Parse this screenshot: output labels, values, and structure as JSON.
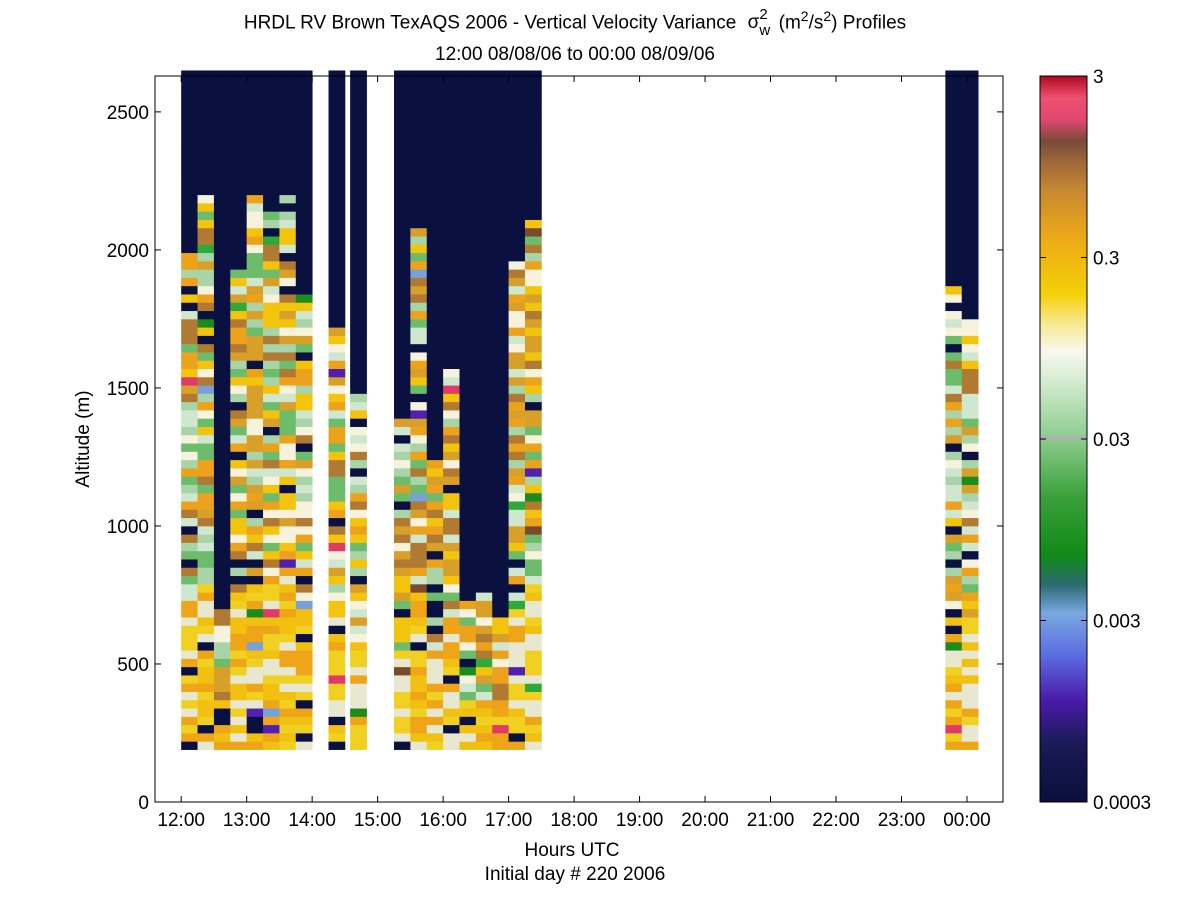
{
  "chart_data": {
    "type": "heatmap",
    "title": {
      "prefix": "HRDL RV Brown TexAQS 2006 - Vertical Velocity Variance",
      "symbol": "σ",
      "symbol_sub": "w",
      "symbol_sup": "2",
      "units_open": "(m",
      "units_sup": "2",
      "units_mid": "/s",
      "units_sup2": "2",
      "units_close": ") Profiles"
    },
    "subtitle": "12:00 08/08/06 to 00:00 08/09/06",
    "xlabel": "Hours UTC",
    "xlabel2": "Initial day # 220  2006",
    "ylabel": "Altitude (m)",
    "x_range_hours": [
      11.6,
      24.55
    ],
    "y_range_m": [
      0,
      2630
    ],
    "x_ticks": [
      {
        "h": 12,
        "label": "12:00"
      },
      {
        "h": 13,
        "label": "13:00"
      },
      {
        "h": 14,
        "label": "14:00"
      },
      {
        "h": 15,
        "label": "15:00"
      },
      {
        "h": 16,
        "label": "16:00"
      },
      {
        "h": 17,
        "label": "17:00"
      },
      {
        "h": 18,
        "label": "18:00"
      },
      {
        "h": 19,
        "label": "19:00"
      },
      {
        "h": 20,
        "label": "20:00"
      },
      {
        "h": 21,
        "label": "21:00"
      },
      {
        "h": 22,
        "label": "22:00"
      },
      {
        "h": 23,
        "label": "23:00"
      },
      {
        "h": 24,
        "label": "00:00"
      }
    ],
    "y_ticks": [
      {
        "v": 0,
        "label": "0"
      },
      {
        "v": 500,
        "label": "500"
      },
      {
        "v": 1000,
        "label": "1000"
      },
      {
        "v": 1500,
        "label": "1500"
      },
      {
        "v": 2000,
        "label": "2000"
      },
      {
        "v": 2500,
        "label": "2500"
      }
    ],
    "colorbar": {
      "scale": "log",
      "range": [
        0.0003,
        3
      ],
      "ticks": [
        {
          "v": 0.0003,
          "label": "0.0003"
        },
        {
          "v": 0.003,
          "label": "0.003"
        },
        {
          "v": 0.03,
          "label": "0.03"
        },
        {
          "v": 0.3,
          "label": "0.3"
        },
        {
          "v": 3,
          "label": "3"
        }
      ]
    },
    "profile_columns": [
      {
        "t0": 12.0,
        "t1": 12.25,
        "top_valid": 1990,
        "top_data": 2640
      },
      {
        "t0": 12.25,
        "t1": 12.5,
        "top_valid": 2190,
        "top_data": 2640
      },
      {
        "t0": 12.5,
        "t1": 12.75,
        "top_valid": 700,
        "top_data": 2640
      },
      {
        "t0": 12.75,
        "t1": 13.0,
        "top_valid": 1920,
        "top_data": 2640
      },
      {
        "t0": 13.0,
        "t1": 13.25,
        "top_valid": 2200,
        "top_data": 2640
      },
      {
        "t0": 13.25,
        "t1": 13.5,
        "top_valid": 2130,
        "top_data": 2640
      },
      {
        "t0": 13.5,
        "t1": 13.75,
        "top_valid": 2200,
        "top_data": 2640
      },
      {
        "t0": 13.75,
        "t1": 14.0,
        "top_valid": 1830,
        "top_data": 2640
      },
      {
        "t0": 14.25,
        "t1": 14.5,
        "top_valid": 1720,
        "top_data": 2640
      },
      {
        "t0": 14.58,
        "t1": 14.83,
        "top_valid": 1480,
        "top_data": 2640
      },
      {
        "t0": 15.25,
        "t1": 15.5,
        "top_valid": 1380,
        "top_data": 2640
      },
      {
        "t0": 15.5,
        "t1": 15.75,
        "top_valid": 2070,
        "top_data": 2640
      },
      {
        "t0": 15.75,
        "t1": 16.0,
        "top_valid": 1240,
        "top_data": 2640
      },
      {
        "t0": 16.0,
        "t1": 16.25,
        "top_valid": 1600,
        "top_data": 2640
      },
      {
        "t0": 16.25,
        "t1": 16.5,
        "top_valid": 730,
        "top_data": 2640
      },
      {
        "t0": 16.5,
        "t1": 16.75,
        "top_valid": 760,
        "top_data": 2640
      },
      {
        "t0": 16.75,
        "t1": 17.0,
        "top_valid": 670,
        "top_data": 2640
      },
      {
        "t0": 17.0,
        "t1": 17.25,
        "top_valid": 1960,
        "top_data": 2640
      },
      {
        "t0": 17.25,
        "t1": 17.5,
        "top_valid": 2100,
        "top_data": 2640
      },
      {
        "t0": 23.67,
        "t1": 23.92,
        "top_valid": 1870,
        "top_data": 2640
      },
      {
        "t0": 23.92,
        "t1": 24.17,
        "top_valid": 1740,
        "top_data": 2640
      }
    ],
    "profile_bottom_m": 190,
    "colors": {
      "no_signal": "#0a1040",
      "low_levels": [
        "#f2c010",
        "#eea618",
        "#f0d020",
        "#e8e8d0"
      ],
      "mid_levels": [
        "#f3c40e",
        "#eda21c",
        "#cfe6cf",
        "#a8d4a8",
        "#6cbc6c",
        "#f6f2dc",
        "#d8a028",
        "#b07a32"
      ],
      "accent": [
        "#1a8c1a",
        "#2eaa3a",
        "#e03a68",
        "#7a4a2a",
        "#5020b0",
        "#7aa0d8",
        "#b8b8b8"
      ],
      "panel_bg": "#ffffff"
    }
  }
}
